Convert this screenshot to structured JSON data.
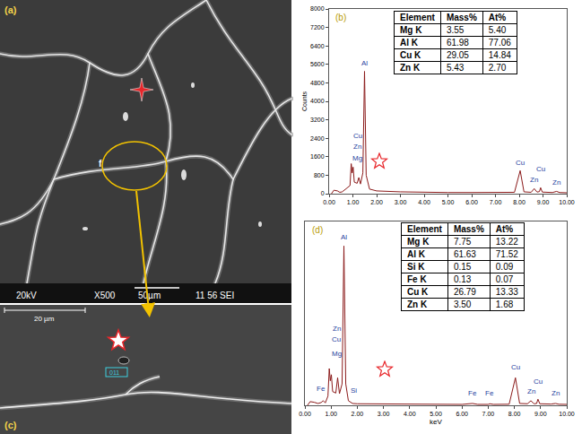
{
  "sem_images": {
    "a": {
      "panel_label": "(a)",
      "feature_label": "f",
      "info_bar": [
        "20kV",
        "X500",
        "50µm",
        "11 56 SEI"
      ]
    },
    "c": {
      "panel_label": "(c)",
      "scale_bar": "20 µm",
      "box_label": "011"
    }
  },
  "chart_data": [
    {
      "type": "line",
      "panel_label": "(b)",
      "color": "#8b1a1a",
      "grid": false,
      "y_label": "Counts",
      "x": [
        0.1,
        0.2,
        0.35,
        0.45,
        0.55,
        0.8,
        0.88,
        0.93,
        0.97,
        1.01,
        1.06,
        1.18,
        1.25,
        1.32,
        1.42,
        1.49,
        1.56,
        1.7,
        2.0,
        3.0,
        4.0,
        5.0,
        6.0,
        7.0,
        7.8,
        8.04,
        8.2,
        8.5,
        8.63,
        8.75,
        8.85,
        8.9,
        8.97,
        9.4,
        9.57,
        9.7,
        10.0
      ],
      "values": [
        0,
        150,
        120,
        60,
        80,
        300,
        350,
        1300,
        900,
        1150,
        500,
        450,
        700,
        420,
        900,
        5300,
        800,
        200,
        120,
        80,
        60,
        50,
        50,
        50,
        60,
        1000,
        80,
        60,
        220,
        70,
        90,
        260,
        70,
        50,
        100,
        50,
        40
      ],
      "xlim": [
        0,
        10
      ],
      "xticks": [
        {
          "value": 0,
          "label": "0.00"
        },
        {
          "value": 1,
          "label": "1.00"
        },
        {
          "value": 2,
          "label": "2.00"
        },
        {
          "value": 3,
          "label": "3.00"
        },
        {
          "value": 4,
          "label": "4.00"
        },
        {
          "value": 5,
          "label": "5.00"
        },
        {
          "value": 6,
          "label": "6.00"
        },
        {
          "value": 7,
          "label": "7.00"
        },
        {
          "value": 8,
          "label": "8.00"
        },
        {
          "value": 9,
          "label": "9.00"
        },
        {
          "value": 10,
          "label": "10.00"
        }
      ],
      "ylim": [
        0,
        8000
      ],
      "yticks": [
        0,
        800,
        1600,
        2400,
        3200,
        4000,
        4800,
        5600,
        6400,
        7200,
        8000
      ],
      "peak_labels": [
        {
          "text": "Al",
          "x": 1.49,
          "y": 5400
        },
        {
          "text": "Cu",
          "x": 1.2,
          "y": 2250
        },
        {
          "text": "Zn",
          "x": 1.2,
          "y": 1800
        },
        {
          "text": "Mg",
          "x": 1.2,
          "y": 1300
        },
        {
          "text": "Cu",
          "x": 8.04,
          "y": 1100
        },
        {
          "text": "Zn",
          "x": 8.63,
          "y": 350
        },
        {
          "text": "Cu",
          "x": 8.9,
          "y": 800
        },
        {
          "text": "Zn",
          "x": 9.57,
          "y": 250
        }
      ],
      "table": {
        "columns": [
          "Element",
          "Mass%",
          "At%"
        ],
        "rows": [
          [
            "Mg K",
            "3.55",
            "5.40"
          ],
          [
            "Al K",
            "61.98",
            "77.06"
          ],
          [
            "Cu K",
            "29.05",
            "14.84"
          ],
          [
            "Zn K",
            "5.43",
            "2.70"
          ]
        ]
      }
    },
    {
      "type": "line",
      "panel_label": "(d)",
      "color": "#8b1a1a",
      "grid": false,
      "tick_labels": "x",
      "x_label": "keV",
      "x": [
        0.1,
        0.2,
        0.35,
        0.5,
        0.62,
        0.7,
        0.78,
        0.88,
        0.93,
        0.97,
        1.01,
        1.06,
        1.18,
        1.25,
        1.32,
        1.42,
        1.49,
        1.56,
        1.66,
        1.74,
        1.82,
        2.0,
        3.0,
        4.0,
        5.0,
        6.0,
        6.4,
        6.6,
        7.0,
        7.06,
        7.2,
        7.8,
        8.04,
        8.2,
        8.5,
        8.63,
        8.75,
        8.85,
        8.9,
        8.97,
        9.4,
        9.57,
        9.7,
        10.0
      ],
      "values": [
        0,
        120,
        100,
        60,
        90,
        150,
        80,
        300,
        1200,
        800,
        1000,
        450,
        400,
        900,
        380,
        700,
        5200,
        700,
        150,
        100,
        60,
        50,
        40,
        35,
        30,
        30,
        60,
        30,
        30,
        50,
        30,
        35,
        900,
        60,
        50,
        150,
        50,
        60,
        200,
        50,
        40,
        60,
        35,
        30
      ],
      "xlim": [
        0,
        10
      ],
      "xticks": [
        {
          "value": 0,
          "label": "0.00"
        },
        {
          "value": 1,
          "label": "1.00"
        },
        {
          "value": 2,
          "label": "2.00"
        },
        {
          "value": 3,
          "label": "3.00"
        },
        {
          "value": 4,
          "label": "4.00"
        },
        {
          "value": 5,
          "label": "5.00"
        },
        {
          "value": 6,
          "label": "6.00"
        },
        {
          "value": 7,
          "label": "7.00"
        },
        {
          "value": 8,
          "label": "8.00"
        },
        {
          "value": 9,
          "label": "9.00"
        },
        {
          "value": 10,
          "label": "10.00"
        }
      ],
      "ylim": [
        0,
        6000
      ],
      "peak_labels": [
        {
          "text": "Al",
          "x": 1.49,
          "y": 5300
        },
        {
          "text": "Zn",
          "x": 1.2,
          "y": 2300
        },
        {
          "text": "Cu",
          "x": 1.2,
          "y": 1950
        },
        {
          "text": "Mg",
          "x": 1.2,
          "y": 1500
        },
        {
          "text": "Fe",
          "x": 0.62,
          "y": 350
        },
        {
          "text": "Si",
          "x": 1.85,
          "y": 300
        },
        {
          "text": "Fe",
          "x": 6.4,
          "y": 200
        },
        {
          "text": "Fe",
          "x": 7.06,
          "y": 200
        },
        {
          "text": "Cu",
          "x": 8.04,
          "y": 1050
        },
        {
          "text": "Zn",
          "x": 8.63,
          "y": 250
        },
        {
          "text": "Cu",
          "x": 8.9,
          "y": 600
        },
        {
          "text": "Zn",
          "x": 9.57,
          "y": 200
        }
      ],
      "table": {
        "columns": [
          "Element",
          "Mass%",
          "At%"
        ],
        "rows": [
          [
            "Mg K",
            "7.75",
            "13.22"
          ],
          [
            "Al K",
            "61.63",
            "71.52"
          ],
          [
            "Si K",
            "0.15",
            "0.09"
          ],
          [
            "Fe K",
            "0.13",
            "0.07"
          ],
          [
            "Cu K",
            "26.79",
            "13.33"
          ],
          [
            "Zn K",
            "3.50",
            "1.68"
          ]
        ]
      }
    }
  ]
}
